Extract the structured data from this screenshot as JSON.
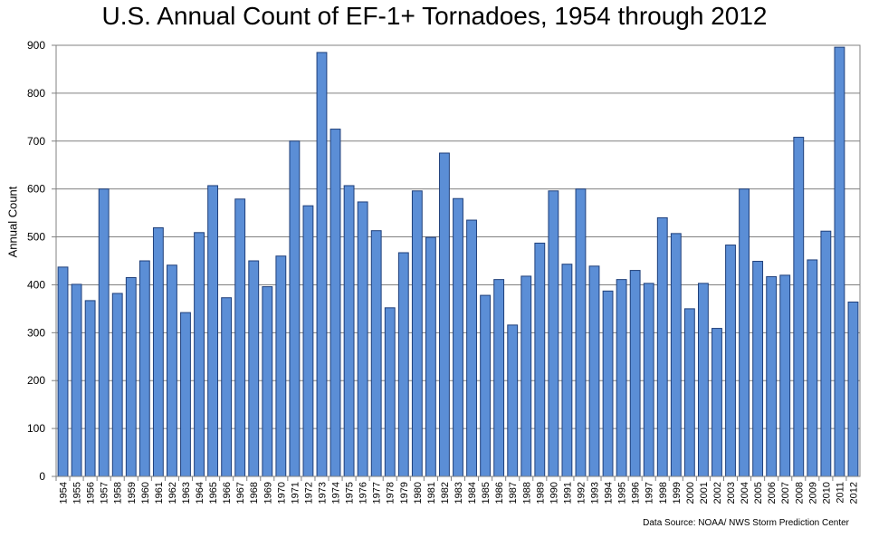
{
  "chart_data": {
    "type": "bar",
    "title": "U.S. Annual Count of EF-1+ Tornadoes, 1954 through 2012",
    "xlabel": "",
    "ylabel": "Annual Count",
    "ylim": [
      0,
      900
    ],
    "yticks": [
      0,
      100,
      200,
      300,
      400,
      500,
      600,
      700,
      800,
      900
    ],
    "grid": true,
    "bar_color": "#5b8ed6",
    "bar_edge_color": "#1f3f7a",
    "categories": [
      "1954",
      "1955",
      "1956",
      "1957",
      "1958",
      "1959",
      "1960",
      "1961",
      "1962",
      "1963",
      "1964",
      "1965",
      "1966",
      "1967",
      "1968",
      "1969",
      "1970",
      "1971",
      "1972",
      "1973",
      "1974",
      "1975",
      "1976",
      "1977",
      "1978",
      "1979",
      "1980",
      "1981",
      "1982",
      "1983",
      "1984",
      "1985",
      "1986",
      "1987",
      "1988",
      "1989",
      "1990",
      "1991",
      "1992",
      "1993",
      "1994",
      "1995",
      "1996",
      "1997",
      "1998",
      "1999",
      "2000",
      "2001",
      "2002",
      "2003",
      "2004",
      "2005",
      "2006",
      "2007",
      "2008",
      "2009",
      "2010",
      "2011",
      "2012"
    ],
    "values": [
      437,
      401,
      367,
      600,
      382,
      415,
      450,
      519,
      441,
      342,
      509,
      607,
      373,
      579,
      450,
      396,
      460,
      700,
      565,
      885,
      725,
      607,
      573,
      513,
      352,
      467,
      596,
      499,
      675,
      580,
      535,
      378,
      411,
      316,
      418,
      487,
      596,
      443,
      600,
      439,
      387,
      411,
      430,
      403,
      540,
      507,
      350,
      403,
      309,
      483,
      600,
      449,
      417,
      420,
      708,
      452,
      512,
      896,
      364
    ],
    "source": "Data Source: NOAA/ NWS Storm Prediction Center"
  }
}
